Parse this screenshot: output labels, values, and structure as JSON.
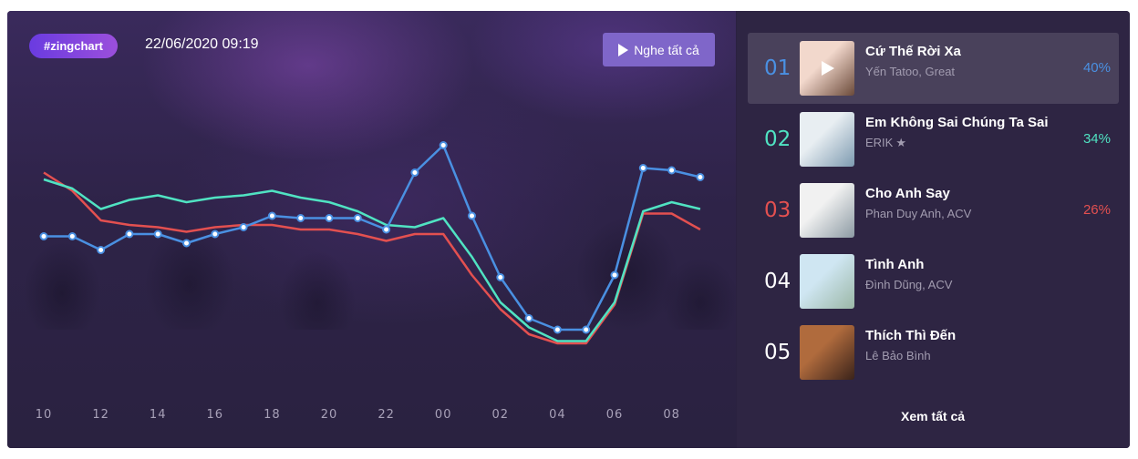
{
  "header": {
    "tag": "#zingchart",
    "datetime": "22/06/2020 09:19",
    "play_all_label": "Nghe tất cả"
  },
  "colors": {
    "rank1": "#4a90e2",
    "rank2": "#50e3c2",
    "rank3": "#e35050",
    "accent_button": "#7f66c9",
    "tag_gradient_start": "#6a3be0",
    "tag_gradient_end": "#9b4fdc"
  },
  "chart_data": {
    "type": "line",
    "x": [
      "10",
      "11",
      "12",
      "13",
      "14",
      "15",
      "16",
      "17",
      "18",
      "19",
      "20",
      "21",
      "22",
      "23",
      "00",
      "01",
      "02",
      "03",
      "04",
      "05",
      "06",
      "07",
      "08",
      "09"
    ],
    "x_tick_labels": [
      "10",
      "12",
      "14",
      "16",
      "18",
      "20",
      "22",
      "00",
      "02",
      "04",
      "06",
      "08"
    ],
    "ylim": [
      0,
      100
    ],
    "grid": false,
    "legend": "none",
    "series": [
      {
        "color": "#4a90e2",
        "markers": true,
        "values": [
          57,
          57,
          51,
          58,
          58,
          54,
          58,
          61,
          66,
          65,
          65,
          65,
          60,
          85,
          97,
          66,
          39,
          21,
          16,
          16,
          40,
          87,
          86,
          83
        ]
      },
      {
        "color": "#50e3c2",
        "markers": false,
        "values": [
          82,
          78,
          69,
          73,
          75,
          72,
          74,
          75,
          77,
          74,
          72,
          68,
          62,
          61,
          65,
          48,
          28,
          17,
          11,
          11,
          28,
          68,
          72,
          69
        ]
      },
      {
        "color": "#e35050",
        "markers": false,
        "values": [
          85,
          77,
          64,
          62,
          61,
          59,
          61,
          62,
          62,
          60,
          60,
          58,
          55,
          58,
          58,
          40,
          25,
          14,
          10,
          10,
          27,
          67,
          67,
          60
        ]
      }
    ]
  },
  "songs": [
    {
      "rank": "01",
      "title": "Cứ Thế Rời Xa",
      "artist": "Yến Tatoo, Great",
      "percent": "40%",
      "star": false,
      "active": true,
      "thumb_colors": [
        "#f2d8cc",
        "#6b4a3a"
      ]
    },
    {
      "rank": "02",
      "title": "Em Không Sai Chúng Ta Sai",
      "artist": "ERIK",
      "percent": "34%",
      "star": true,
      "active": false,
      "thumb_colors": [
        "#e8eef2",
        "#7d9ab0"
      ]
    },
    {
      "rank": "03",
      "title": "Cho Anh Say",
      "artist": "Phan Duy Anh, ACV",
      "percent": "26%",
      "star": false,
      "active": false,
      "thumb_colors": [
        "#f1f1f1",
        "#8c9aa3"
      ]
    },
    {
      "rank": "04",
      "title": "Tình Anh",
      "artist": "Đình Dũng, ACV",
      "percent": "",
      "star": false,
      "active": false,
      "thumb_colors": [
        "#cfe6f2",
        "#9bb7a6"
      ]
    },
    {
      "rank": "05",
      "title": "Thích Thì Đến",
      "artist": "Lê Bảo Bình",
      "percent": "",
      "star": false,
      "active": false,
      "thumb_colors": [
        "#b06b3d",
        "#3a231a"
      ]
    }
  ],
  "footer": {
    "see_all_label": "Xem tất cả"
  }
}
